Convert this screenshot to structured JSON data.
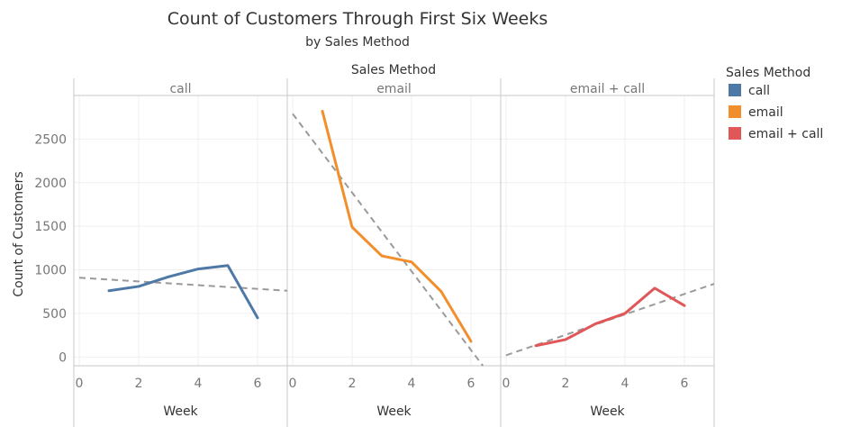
{
  "chart_data": {
    "type": "line",
    "title": "Count of Customers Through First Six Weeks",
    "subtitle": "by Sales Method",
    "facet_header": "Sales Method",
    "ylabel": "Count of Customers",
    "xlabel": "Week",
    "ylim": [
      -100,
      3000
    ],
    "xlim": [
      0,
      7
    ],
    "y_ticks": [
      0,
      500,
      1000,
      1500,
      2000,
      2500
    ],
    "x_ticks": [
      0,
      2,
      4,
      6
    ],
    "grid": true,
    "legend_position": "right",
    "legend_title": "Sales Method",
    "panels": [
      {
        "name": "call",
        "color": "#4e79a7",
        "x": [
          1,
          2,
          3,
          4,
          5,
          6
        ],
        "y": [
          760,
          810,
          920,
          1010,
          1050,
          450
        ],
        "trend": [
          [
            0,
            910
          ],
          [
            7,
            760
          ]
        ]
      },
      {
        "name": "email",
        "color": "#f28e2b",
        "x": [
          1,
          2,
          3,
          4,
          5,
          6
        ],
        "y": [
          2820,
          1490,
          1160,
          1090,
          750,
          180
        ],
        "trend": [
          [
            0,
            2790
          ],
          [
            6.4,
            -100
          ]
        ]
      },
      {
        "name": "email + call",
        "color": "#e15759",
        "x": [
          1,
          2,
          3,
          4,
          5,
          6
        ],
        "y": [
          130,
          200,
          380,
          500,
          790,
          590
        ],
        "trend": [
          [
            0,
            20
          ],
          [
            7,
            840
          ]
        ]
      }
    ]
  }
}
